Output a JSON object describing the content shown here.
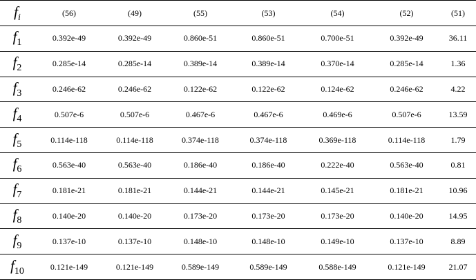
{
  "table": {
    "header": {
      "label": {
        "main": "f",
        "sub": "i"
      },
      "columns": [
        "(56)",
        "(49)",
        "(55)",
        "(53)",
        "(54)",
        "(52)",
        "(51)"
      ]
    },
    "rows": [
      {
        "label": {
          "main": "f",
          "sub": "1"
        },
        "cells": [
          "0.392e-49",
          "0.392e-49",
          "0.860e-51",
          "0.860e-51",
          "0.700e-51",
          "0.392e-49",
          "36.11"
        ]
      },
      {
        "label": {
          "main": "f",
          "sub": "2"
        },
        "cells": [
          "0.285e-14",
          "0.285e-14",
          "0.389e-14",
          "0.389e-14",
          "0.370e-14",
          "0.285e-14",
          "1.36"
        ]
      },
      {
        "label": {
          "main": "f",
          "sub": "3"
        },
        "cells": [
          "0.246e-62",
          "0.246e-62",
          "0.122e-62",
          "0.122e-62",
          "0.124e-62",
          "0.246e-62",
          "4.22"
        ]
      },
      {
        "label": {
          "main": "f",
          "sub": "4"
        },
        "cells": [
          "0.507e-6",
          "0.507e-6",
          "0.467e-6",
          "0.467e-6",
          "0.469e-6",
          "0.507e-6",
          "13.59"
        ]
      },
      {
        "label": {
          "main": "f",
          "sub": "5"
        },
        "cells": [
          "0.114e-118",
          "0.114e-118",
          "0.374e-118",
          "0.374e-118",
          "0.369e-118",
          "0.114e-118",
          "1.79"
        ]
      },
      {
        "label": {
          "main": "f",
          "sub": "6"
        },
        "cells": [
          "0.563e-40",
          "0.563e-40",
          "0.186e-40",
          "0.186e-40",
          "0.222e-40",
          "0.563e-40",
          "0.81"
        ]
      },
      {
        "label": {
          "main": "f",
          "sub": "7"
        },
        "cells": [
          "0.181e-21",
          "0.181e-21",
          "0.144e-21",
          "0.144e-21",
          "0.145e-21",
          "0.181e-21",
          "10.96"
        ]
      },
      {
        "label": {
          "main": "f",
          "sub": "8"
        },
        "cells": [
          "0.140e-20",
          "0.140e-20",
          "0.173e-20",
          "0.173e-20",
          "0.173e-20",
          "0.140e-20",
          "14.95"
        ]
      },
      {
        "label": {
          "main": "f",
          "sub": "9"
        },
        "cells": [
          "0.137e-10",
          "0.137e-10",
          "0.148e-10",
          "0.148e-10",
          "0.149e-10",
          "0.137e-10",
          "8.89"
        ]
      },
      {
        "label": {
          "main": "f",
          "sub": "10"
        },
        "cells": [
          "0.121e-149",
          "0.121e-149",
          "0.589e-149",
          "0.589e-149",
          "0.588e-149",
          "0.121e-149",
          "21.07"
        ]
      }
    ]
  }
}
